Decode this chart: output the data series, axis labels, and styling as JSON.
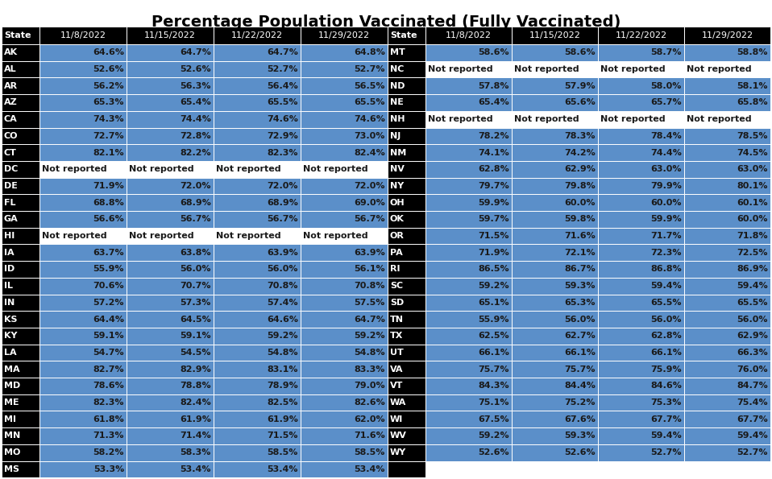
{
  "title": "Percentage Population Vaccinated (Fully Vaccinated)",
  "col_headers": [
    "State",
    "11/8/2022",
    "11/15/2022",
    "11/22/2022",
    "11/29/2022"
  ],
  "left_data": [
    [
      "AK",
      "64.6%",
      "64.7%",
      "64.7%",
      "64.8%"
    ],
    [
      "AL",
      "52.6%",
      "52.6%",
      "52.7%",
      "52.7%"
    ],
    [
      "AR",
      "56.2%",
      "56.3%",
      "56.4%",
      "56.5%"
    ],
    [
      "AZ",
      "65.3%",
      "65.4%",
      "65.5%",
      "65.5%"
    ],
    [
      "CA",
      "74.3%",
      "74.4%",
      "74.6%",
      "74.6%"
    ],
    [
      "CO",
      "72.7%",
      "72.8%",
      "72.9%",
      "73.0%"
    ],
    [
      "CT",
      "82.1%",
      "82.2%",
      "82.3%",
      "82.4%"
    ],
    [
      "DC",
      "Not reported",
      "Not reported",
      "Not reported",
      "Not reported"
    ],
    [
      "DE",
      "71.9%",
      "72.0%",
      "72.0%",
      "72.0%"
    ],
    [
      "FL",
      "68.8%",
      "68.9%",
      "68.9%",
      "69.0%"
    ],
    [
      "GA",
      "56.6%",
      "56.7%",
      "56.7%",
      "56.7%"
    ],
    [
      "HI",
      "Not reported",
      "Not reported",
      "Not reported",
      "Not reported"
    ],
    [
      "IA",
      "63.7%",
      "63.8%",
      "63.9%",
      "63.9%"
    ],
    [
      "ID",
      "55.9%",
      "56.0%",
      "56.0%",
      "56.1%"
    ],
    [
      "IL",
      "70.6%",
      "70.7%",
      "70.8%",
      "70.8%"
    ],
    [
      "IN",
      "57.2%",
      "57.3%",
      "57.4%",
      "57.5%"
    ],
    [
      "KS",
      "64.4%",
      "64.5%",
      "64.6%",
      "64.7%"
    ],
    [
      "KY",
      "59.1%",
      "59.1%",
      "59.2%",
      "59.2%"
    ],
    [
      "LA",
      "54.7%",
      "54.5%",
      "54.8%",
      "54.8%"
    ],
    [
      "MA",
      "82.7%",
      "82.9%",
      "83.1%",
      "83.3%"
    ],
    [
      "MD",
      "78.6%",
      "78.8%",
      "78.9%",
      "79.0%"
    ],
    [
      "ME",
      "82.3%",
      "82.4%",
      "82.5%",
      "82.6%"
    ],
    [
      "MI",
      "61.8%",
      "61.9%",
      "61.9%",
      "62.0%"
    ],
    [
      "MN",
      "71.3%",
      "71.4%",
      "71.5%",
      "71.6%"
    ],
    [
      "MO",
      "58.2%",
      "58.3%",
      "58.5%",
      "58.5%"
    ],
    [
      "MS",
      "53.3%",
      "53.4%",
      "53.4%",
      "53.4%"
    ]
  ],
  "right_data": [
    [
      "MT",
      "58.6%",
      "58.6%",
      "58.7%",
      "58.8%"
    ],
    [
      "NC",
      "Not reported",
      "Not reported",
      "Not reported",
      "Not reported"
    ],
    [
      "ND",
      "57.8%",
      "57.9%",
      "58.0%",
      "58.1%"
    ],
    [
      "NE",
      "65.4%",
      "65.6%",
      "65.7%",
      "65.8%"
    ],
    [
      "NH",
      "Not reported",
      "Not reported",
      "Not reported",
      "Not reported"
    ],
    [
      "NJ",
      "78.2%",
      "78.3%",
      "78.4%",
      "78.5%"
    ],
    [
      "NM",
      "74.1%",
      "74.2%",
      "74.4%",
      "74.5%"
    ],
    [
      "NV",
      "62.8%",
      "62.9%",
      "63.0%",
      "63.0%"
    ],
    [
      "NY",
      "79.7%",
      "79.8%",
      "79.9%",
      "80.1%"
    ],
    [
      "OH",
      "59.9%",
      "60.0%",
      "60.0%",
      "60.1%"
    ],
    [
      "OK",
      "59.7%",
      "59.8%",
      "59.9%",
      "60.0%"
    ],
    [
      "OR",
      "71.5%",
      "71.6%",
      "71.7%",
      "71.8%"
    ],
    [
      "PA",
      "71.9%",
      "72.1%",
      "72.3%",
      "72.5%"
    ],
    [
      "RI",
      "86.5%",
      "86.7%",
      "86.8%",
      "86.9%"
    ],
    [
      "SC",
      "59.2%",
      "59.3%",
      "59.4%",
      "59.4%"
    ],
    [
      "SD",
      "65.1%",
      "65.3%",
      "65.5%",
      "65.5%"
    ],
    [
      "TN",
      "55.9%",
      "56.0%",
      "56.0%",
      "56.0%"
    ],
    [
      "TX",
      "62.5%",
      "62.7%",
      "62.8%",
      "62.9%"
    ],
    [
      "UT",
      "66.1%",
      "66.1%",
      "66.1%",
      "66.3%"
    ],
    [
      "VA",
      "75.7%",
      "75.7%",
      "75.9%",
      "76.0%"
    ],
    [
      "VT",
      "84.3%",
      "84.4%",
      "84.6%",
      "84.7%"
    ],
    [
      "WA",
      "75.1%",
      "75.2%",
      "75.3%",
      "75.4%"
    ],
    [
      "WI",
      "67.5%",
      "67.6%",
      "67.7%",
      "67.7%"
    ],
    [
      "WV",
      "59.2%",
      "59.3%",
      "59.4%",
      "59.4%"
    ],
    [
      "WY",
      "52.6%",
      "52.6%",
      "52.7%",
      "52.7%"
    ],
    [
      "",
      "",
      "",
      "",
      ""
    ]
  ],
  "header_bg": "#000000",
  "header_fg": "#ffffff",
  "state_col_bg": "#000000",
  "state_col_fg": "#ffffff",
  "data_bg": "#5b8fc9",
  "data_fg": "#1a1a1a",
  "not_reported_bg": "#ffffff",
  "not_reported_fg": "#1a1a1a",
  "empty_bg": "#ffffff",
  "title_fontsize": 14,
  "cell_fontsize": 8,
  "header_fontsize": 8
}
